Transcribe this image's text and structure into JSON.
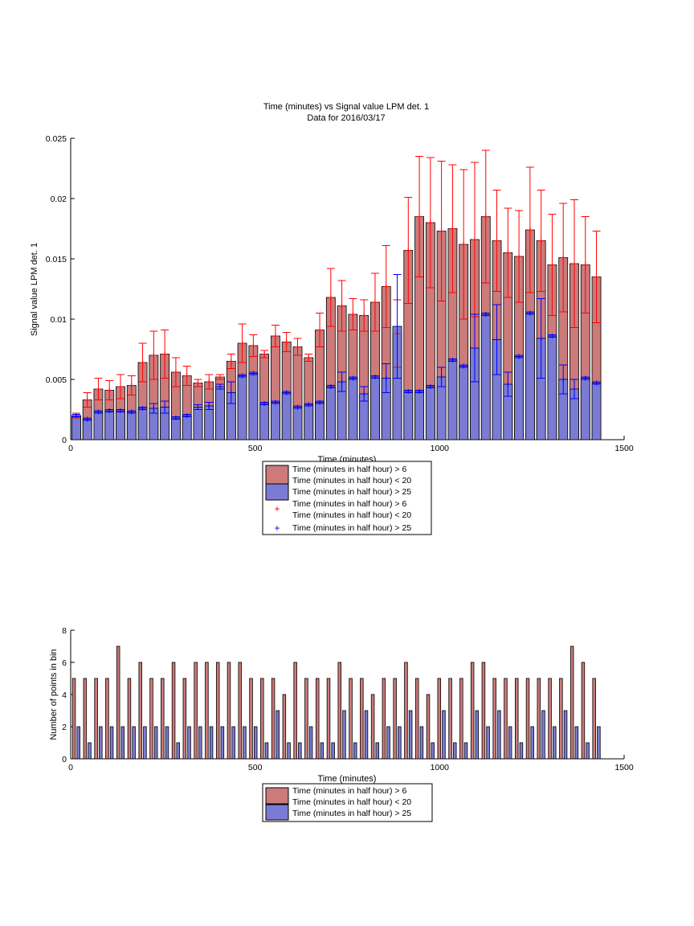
{
  "chart_data": [
    {
      "type": "bar",
      "title_lines": [
        "Time (minutes) vs Signal value LPM det. 1",
        "Data for 2016/03/17"
      ],
      "xlabel": "Time (minutes)",
      "ylabel": "Signal value LPM det. 1",
      "xlim": [
        0,
        1500
      ],
      "ylim": [
        0,
        0.025
      ],
      "xticks": [
        0,
        500,
        1000,
        1500
      ],
      "xtick_labels": [
        "0",
        "500",
        "1000",
        "1500"
      ],
      "yticks": [
        0,
        0.005,
        0.01,
        0.015,
        0.02,
        0.025
      ],
      "ytick_labels": [
        "0",
        "0.005",
        "0.01",
        "0.015",
        "0.02",
        "0.025"
      ],
      "grid": false,
      "bar_width": 24,
      "x": [
        15,
        45,
        75,
        105,
        135,
        165,
        195,
        225,
        255,
        285,
        315,
        345,
        375,
        405,
        435,
        465,
        495,
        525,
        555,
        585,
        615,
        645,
        675,
        705,
        735,
        765,
        795,
        825,
        855,
        885,
        915,
        945,
        975,
        1005,
        1035,
        1065,
        1095,
        1125,
        1155,
        1185,
        1215,
        1245,
        1275,
        1305,
        1335,
        1365,
        1395,
        1425
      ],
      "series": [
        {
          "legend_label": [
            "Time (minutes in half hour) > 6",
            "Time (minutes in half hour) < 20"
          ],
          "color": "#cc7a7a",
          "marker_color": "#ff0000",
          "values": [
            0.002,
            0.0033,
            0.0042,
            0.0041,
            0.0044,
            0.0045,
            0.0064,
            0.007,
            0.0071,
            0.0056,
            0.0053,
            0.0047,
            0.0048,
            0.0052,
            0.0065,
            0.008,
            0.0078,
            0.0071,
            0.0086,
            0.0081,
            0.0077,
            0.0068,
            0.0091,
            0.0118,
            0.0111,
            0.0104,
            0.0103,
            0.0114,
            0.0127,
            0.0088,
            0.0157,
            0.0185,
            0.018,
            0.0173,
            0.0175,
            0.0162,
            0.0166,
            0.0185,
            0.0165,
            0.0155,
            0.0152,
            0.0174,
            0.0165,
            0.0145,
            0.0151,
            0.0146,
            0.0145,
            0.0135
          ],
          "errors": [
            0.0002,
            0.0006,
            0.0009,
            0.0008,
            0.001,
            0.0008,
            0.0016,
            0.002,
            0.002,
            0.0012,
            0.0008,
            0.0003,
            0.0006,
            0.0002,
            0.0006,
            0.0016,
            0.0009,
            0.0003,
            0.0009,
            0.0008,
            0.0007,
            0.0003,
            0.0014,
            0.0024,
            0.0021,
            0.0013,
            0.0013,
            0.0024,
            0.0034,
            0.0028,
            0.0044,
            0.005,
            0.0054,
            0.0058,
            0.0053,
            0.0062,
            0.0064,
            0.0055,
            0.0042,
            0.0037,
            0.0038,
            0.0052,
            0.0042,
            0.0042,
            0.0045,
            0.0053,
            0.004,
            0.0038
          ]
        },
        {
          "legend_label": "Time (minutes in half hour) > 25",
          "color": "#7b7bd4",
          "marker_color": "#0000ff",
          "values": [
            0.002,
            0.0017,
            0.0023,
            0.0024,
            0.0024,
            0.0023,
            0.0026,
            0.0026,
            0.0027,
            0.0018,
            0.002,
            0.0027,
            0.0028,
            0.0044,
            0.0039,
            0.0053,
            0.0055,
            0.003,
            0.0031,
            0.0039,
            0.0027,
            0.0029,
            0.0031,
            0.0044,
            0.0048,
            0.0051,
            0.0038,
            0.0052,
            0.0051,
            0.0094,
            0.004,
            0.004,
            0.0044,
            0.0052,
            0.0066,
            0.0061,
            0.0076,
            0.0104,
            0.0083,
            0.0046,
            0.0069,
            0.0105,
            0.0084,
            0.0086,
            0.005,
            0.0042,
            0.0051,
            0.0047
          ],
          "errors": [
            0.0001,
            0.0001,
            0.0001,
            0.0001,
            0.0001,
            0.0001,
            0.0001,
            0.0004,
            0.0005,
            0.0001,
            0.0001,
            0.0002,
            0.0003,
            0.0002,
            0.0009,
            0.0001,
            0.0001,
            0.0001,
            0.0001,
            0.0001,
            0.0001,
            0.0001,
            0.0001,
            0.0001,
            0.0008,
            0.0001,
            0.0006,
            0.0001,
            0.0012,
            0.0043,
            0.0001,
            0.0001,
            0.0001,
            0.0008,
            0.0001,
            0.0001,
            0.0028,
            0.0001,
            0.0029,
            0.001,
            0.0001,
            0.0001,
            0.0033,
            0.0001,
            0.0012,
            0.0008,
            0.0001,
            0.0001
          ]
        }
      ]
    },
    {
      "type": "bar",
      "xlabel": "Time (minutes)",
      "ylabel": "Number of points in bin",
      "xlim": [
        0,
        1500
      ],
      "ylim": [
        0,
        8
      ],
      "xticks": [
        0,
        500,
        1000,
        1500
      ],
      "xtick_labels": [
        "0",
        "500",
        "1000",
        "1500"
      ],
      "yticks": [
        0,
        2,
        4,
        6,
        8
      ],
      "ytick_labels": [
        "0",
        "2",
        "4",
        "6",
        "8"
      ],
      "grid": false,
      "bar_width": 8,
      "x": [
        15,
        45,
        75,
        105,
        135,
        165,
        195,
        225,
        255,
        285,
        315,
        345,
        375,
        405,
        435,
        465,
        495,
        525,
        555,
        585,
        615,
        645,
        675,
        705,
        735,
        765,
        795,
        825,
        855,
        885,
        915,
        945,
        975,
        1005,
        1035,
        1065,
        1095,
        1125,
        1155,
        1185,
        1215,
        1245,
        1275,
        1305,
        1335,
        1365,
        1395,
        1425
      ],
      "series": [
        {
          "legend_label": [
            "Time (minutes in half hour) > 6",
            "Time (minutes in half hour) < 20"
          ],
          "color": "#cc7a7a",
          "values": [
            5,
            5,
            5,
            5,
            7,
            5,
            6,
            5,
            5,
            6,
            5,
            6,
            6,
            6,
            6,
            6,
            5,
            5,
            5,
            4,
            6,
            5,
            5,
            5,
            6,
            5,
            5,
            4,
            5,
            5,
            6,
            5,
            4,
            5,
            5,
            5,
            6,
            6,
            5,
            5,
            5,
            5,
            5,
            5,
            5,
            7,
            6,
            5
          ]
        },
        {
          "legend_label": "Time (minutes in half hour) > 25",
          "color": "#7b7bd4",
          "values": [
            2,
            1,
            2,
            2,
            2,
            2,
            2,
            2,
            2,
            1,
            2,
            2,
            2,
            2,
            2,
            2,
            2,
            1,
            3,
            1,
            1,
            2,
            1,
            1,
            3,
            1,
            3,
            1,
            2,
            2,
            3,
            2,
            1,
            3,
            1,
            1,
            3,
            2,
            3,
            2,
            1,
            2,
            3,
            2,
            3,
            2,
            1,
            2
          ]
        }
      ]
    }
  ]
}
